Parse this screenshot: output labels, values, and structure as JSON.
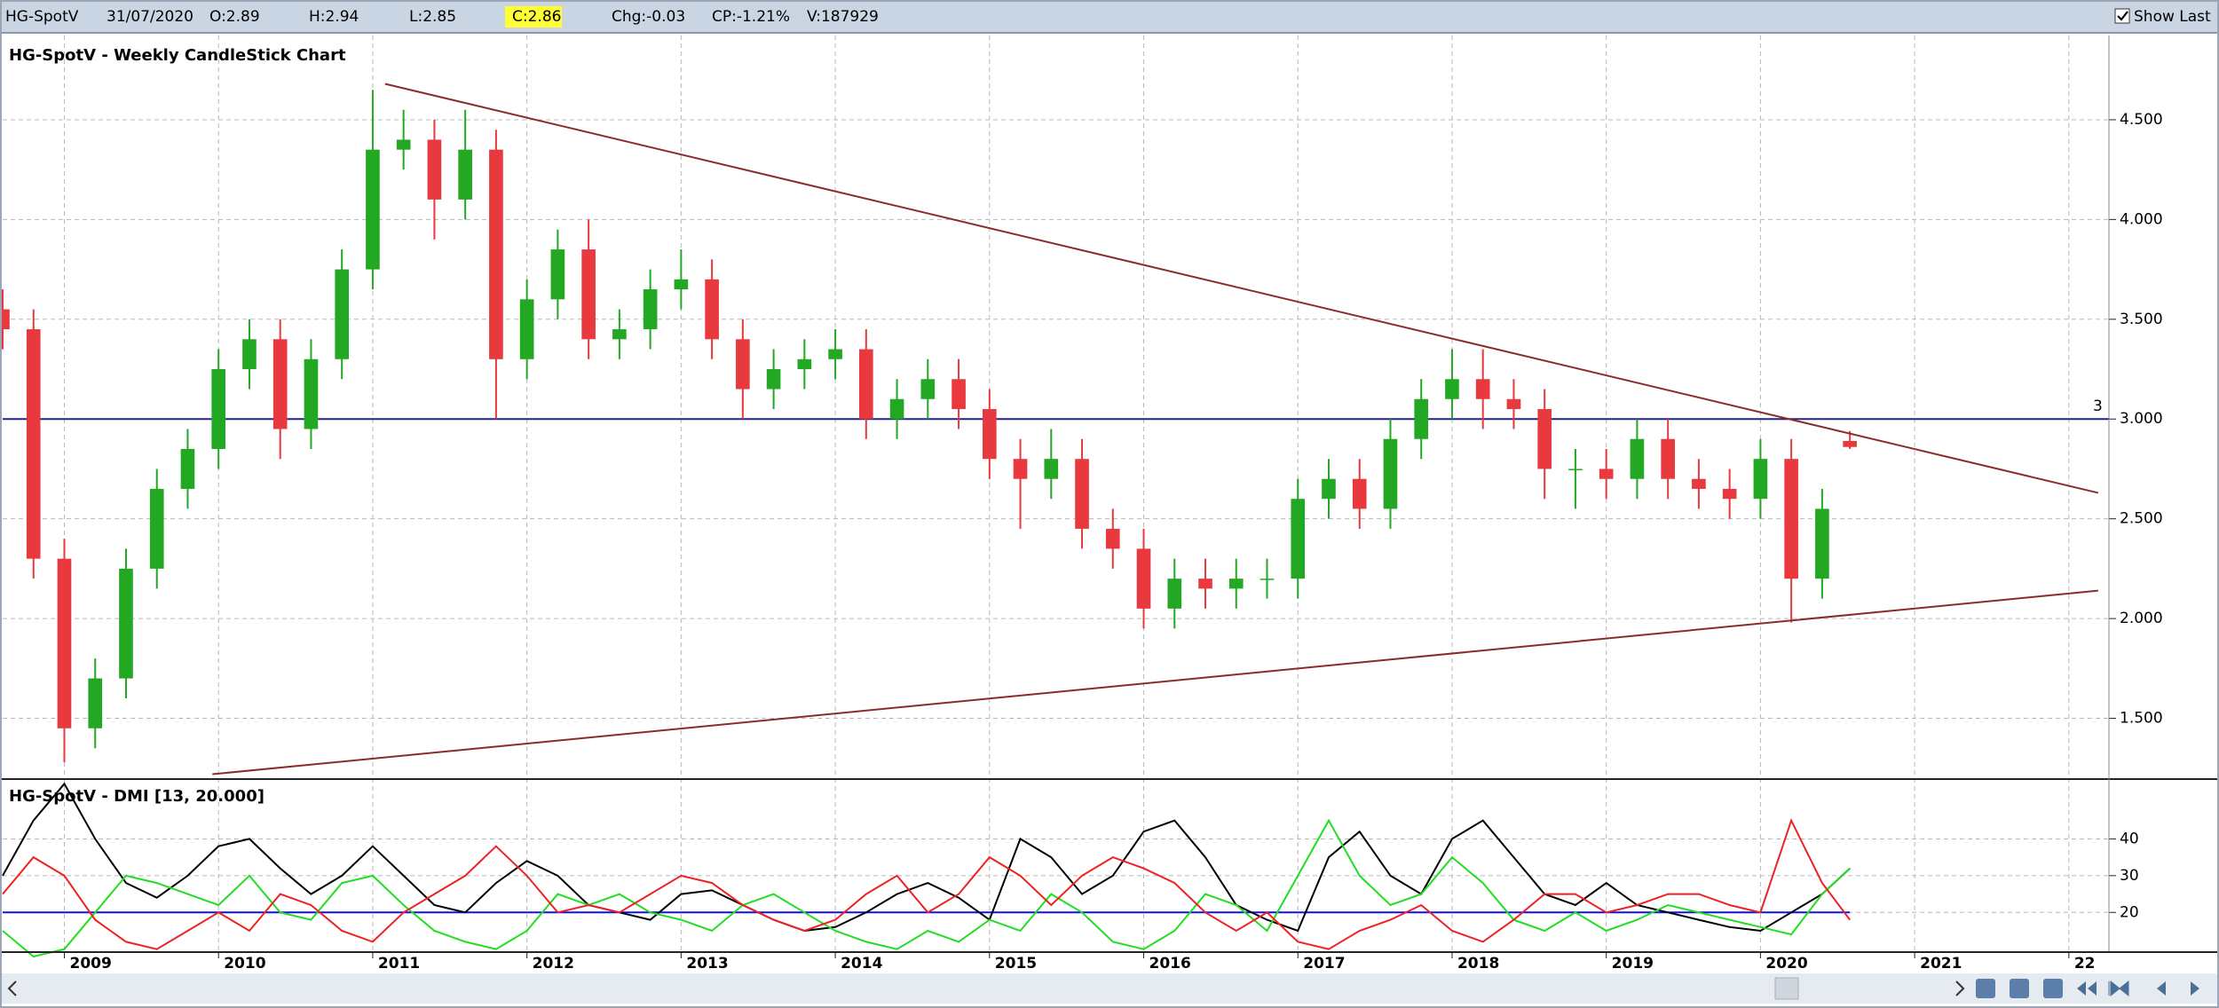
{
  "header": {
    "symbol": "HG-SpotV",
    "date": "31/07/2020",
    "open": "O:2.89",
    "high": "H:2.94",
    "low": "L:2.85",
    "close": "C:2.86",
    "change": "Chg:-0.03",
    "change_pct": "CP:-1.21%",
    "volume": "V:187929",
    "show_last": "Show Last"
  },
  "chart_data": [
    {
      "type": "candlestick",
      "title": "HG-SpotV - Weekly CandleStick Chart",
      "x": [
        2008.6,
        2008.8,
        2009.0,
        2009.2,
        2009.4,
        2009.6,
        2009.8,
        2010.0,
        2010.2,
        2010.4,
        2010.6,
        2010.8,
        2011.0,
        2011.2,
        2011.4,
        2011.6,
        2011.8,
        2012.0,
        2012.2,
        2012.4,
        2012.6,
        2012.8,
        2013.0,
        2013.2,
        2013.4,
        2013.6,
        2013.8,
        2014.0,
        2014.2,
        2014.4,
        2014.6,
        2014.8,
        2015.0,
        2015.2,
        2015.4,
        2015.6,
        2015.8,
        2016.0,
        2016.2,
        2016.4,
        2016.6,
        2016.8,
        2017.0,
        2017.2,
        2017.4,
        2017.6,
        2017.8,
        2018.0,
        2018.2,
        2018.4,
        2018.6,
        2018.8,
        2019.0,
        2019.2,
        2019.4,
        2019.6,
        2019.8,
        2020.0,
        2020.2,
        2020.4,
        2020.58
      ],
      "open": [
        3.55,
        3.45,
        2.3,
        1.45,
        1.7,
        2.25,
        2.65,
        2.85,
        3.25,
        3.4,
        2.95,
        3.3,
        3.75,
        4.35,
        4.4,
        4.1,
        4.35,
        3.3,
        3.6,
        3.85,
        3.4,
        3.45,
        3.65,
        3.7,
        3.4,
        3.15,
        3.25,
        3.3,
        3.35,
        3.0,
        3.1,
        3.2,
        3.05,
        2.8,
        2.7,
        2.8,
        2.45,
        2.35,
        2.05,
        2.2,
        2.15,
        2.2,
        2.2,
        2.6,
        2.7,
        2.55,
        2.9,
        3.1,
        3.2,
        3.1,
        3.05,
        2.75,
        2.75,
        2.7,
        2.9,
        2.7,
        2.65,
        2.6,
        2.8,
        2.2,
        2.89
      ],
      "high": [
        3.65,
        3.55,
        2.4,
        1.8,
        2.35,
        2.75,
        2.95,
        3.35,
        3.5,
        3.5,
        3.4,
        3.85,
        4.65,
        4.55,
        4.5,
        4.55,
        4.45,
        3.7,
        3.95,
        4.0,
        3.55,
        3.75,
        3.85,
        3.8,
        3.5,
        3.35,
        3.4,
        3.45,
        3.45,
        3.2,
        3.3,
        3.3,
        3.15,
        2.9,
        2.95,
        2.9,
        2.55,
        2.45,
        2.3,
        2.3,
        2.3,
        2.3,
        2.7,
        2.8,
        2.8,
        3.0,
        3.2,
        3.35,
        3.35,
        3.2,
        3.15,
        2.85,
        2.85,
        3.0,
        3.0,
        2.8,
        2.75,
        2.9,
        2.9,
        2.65,
        2.94
      ],
      "low": [
        3.35,
        2.2,
        1.28,
        1.35,
        1.6,
        2.15,
        2.55,
        2.75,
        3.15,
        2.8,
        2.85,
        3.2,
        3.65,
        4.25,
        3.9,
        4.0,
        3.0,
        3.2,
        3.5,
        3.3,
        3.3,
        3.35,
        3.55,
        3.3,
        3.0,
        3.05,
        3.15,
        3.2,
        2.9,
        2.9,
        3.0,
        2.95,
        2.7,
        2.45,
        2.6,
        2.35,
        2.25,
        1.95,
        1.95,
        2.05,
        2.05,
        2.1,
        2.1,
        2.5,
        2.45,
        2.45,
        2.8,
        3.0,
        2.95,
        2.95,
        2.6,
        2.55,
        2.6,
        2.6,
        2.6,
        2.55,
        2.5,
        2.5,
        1.98,
        2.1,
        2.85
      ],
      "close": [
        3.45,
        2.3,
        1.45,
        1.7,
        2.25,
        2.65,
        2.85,
        3.25,
        3.4,
        2.95,
        3.3,
        3.75,
        4.35,
        4.4,
        4.1,
        4.35,
        3.3,
        3.6,
        3.85,
        3.4,
        3.45,
        3.65,
        3.7,
        3.4,
        3.15,
        3.25,
        3.3,
        3.35,
        3.0,
        3.1,
        3.2,
        3.05,
        2.8,
        2.7,
        2.8,
        2.45,
        2.35,
        2.05,
        2.2,
        2.15,
        2.2,
        2.2,
        2.6,
        2.7,
        2.55,
        2.9,
        3.1,
        3.2,
        3.1,
        3.05,
        2.75,
        2.75,
        2.7,
        2.9,
        2.7,
        2.65,
        2.6,
        2.8,
        2.2,
        2.55,
        2.86
      ],
      "up_color": "#22a822",
      "down_color": "#e8393f",
      "xlim": [
        2008.6,
        2022.26
      ],
      "xticks": [
        2009,
        2010,
        2011,
        2012,
        2013,
        2014,
        2015,
        2016,
        2017,
        2018,
        2019,
        2020,
        2021,
        {
          "value": 2022,
          "label": "22"
        }
      ],
      "ylim": [
        1.2,
        4.9
      ],
      "yticks": [
        {
          "value": 1.5,
          "label": "1.500"
        },
        {
          "value": 2,
          "label": "2.000"
        },
        {
          "value": 2.5,
          "label": "2.500"
        },
        {
          "value": 3,
          "label": "3.000"
        },
        {
          "value": 3.5,
          "label": "3.500"
        },
        {
          "value": 4,
          "label": "4.000"
        },
        {
          "value": 4.5,
          "label": "4.500"
        }
      ],
      "grid": true,
      "hline": {
        "value": 3,
        "color": "#22228f",
        "show_value": true
      },
      "trendlines": [
        {
          "x": [
            2011.08,
            2022.19
          ],
          "y": [
            4.68,
            2.63
          ],
          "color": "#8b2c2c"
        },
        {
          "x": [
            2009.96,
            2022.19
          ],
          "y": [
            1.22,
            2.14
          ],
          "color": "#8b2c2c"
        }
      ]
    },
    {
      "type": "line",
      "title": "HG-SpotV - DMI [13, 20.000]",
      "x": [
        2008.6,
        2008.8,
        2009.0,
        2009.2,
        2009.4,
        2009.6,
        2009.8,
        2010.0,
        2010.2,
        2010.4,
        2010.6,
        2010.8,
        2011.0,
        2011.2,
        2011.4,
        2011.6,
        2011.8,
        2012.0,
        2012.2,
        2012.4,
        2012.6,
        2012.8,
        2013.0,
        2013.2,
        2013.4,
        2013.6,
        2013.8,
        2014.0,
        2014.2,
        2014.4,
        2014.6,
        2014.8,
        2015.0,
        2015.2,
        2015.4,
        2015.6,
        2015.8,
        2016.0,
        2016.2,
        2016.4,
        2016.6,
        2016.8,
        2017.0,
        2017.2,
        2017.4,
        2017.6,
        2017.8,
        2018.0,
        2018.2,
        2018.4,
        2018.6,
        2018.8,
        2019.0,
        2019.2,
        2019.4,
        2019.6,
        2019.8,
        2020.0,
        2020.2,
        2020.4,
        2020.58
      ],
      "series": [
        {
          "color": "#000000",
          "values": [
            30,
            45,
            55,
            40,
            28,
            24,
            30,
            38,
            40,
            32,
            25,
            30,
            38,
            30,
            22,
            20,
            28,
            34,
            30,
            22,
            20,
            18,
            25,
            26,
            22,
            18,
            15,
            16,
            20,
            25,
            28,
            24,
            18,
            40,
            35,
            25,
            30,
            42,
            45,
            35,
            22,
            18,
            15,
            35,
            42,
            30,
            25,
            40,
            45,
            35,
            25,
            22,
            28,
            22,
            20,
            18,
            16,
            15,
            20,
            25,
            32
          ]
        },
        {
          "color": "#22dd22",
          "values": [
            15,
            8,
            10,
            20,
            30,
            28,
            25,
            22,
            30,
            20,
            18,
            28,
            30,
            22,
            15,
            12,
            10,
            15,
            25,
            22,
            25,
            20,
            18,
            15,
            22,
            25,
            20,
            15,
            12,
            10,
            15,
            12,
            18,
            15,
            25,
            20,
            12,
            10,
            15,
            25,
            22,
            15,
            30,
            45,
            30,
            22,
            25,
            35,
            28,
            18,
            15,
            20,
            15,
            18,
            22,
            20,
            18,
            16,
            14,
            25,
            32
          ]
        },
        {
          "color": "#ee2222",
          "values": [
            25,
            35,
            30,
            18,
            12,
            10,
            15,
            20,
            15,
            25,
            22,
            15,
            12,
            20,
            25,
            30,
            38,
            30,
            20,
            22,
            20,
            25,
            30,
            28,
            22,
            18,
            15,
            18,
            25,
            30,
            20,
            25,
            35,
            30,
            22,
            30,
            35,
            32,
            28,
            20,
            15,
            20,
            12,
            10,
            15,
            18,
            22,
            15,
            12,
            18,
            25,
            25,
            20,
            22,
            25,
            25,
            22,
            20,
            45,
            28,
            18
          ]
        }
      ],
      "xlim": [
        2008.6,
        2022.26
      ],
      "ylim": [
        9.2,
        55.8
      ],
      "yticks": [
        20,
        30,
        40
      ],
      "grid": true,
      "hline": {
        "value": 20,
        "color": "#1010ee",
        "show_value": false
      }
    }
  ]
}
